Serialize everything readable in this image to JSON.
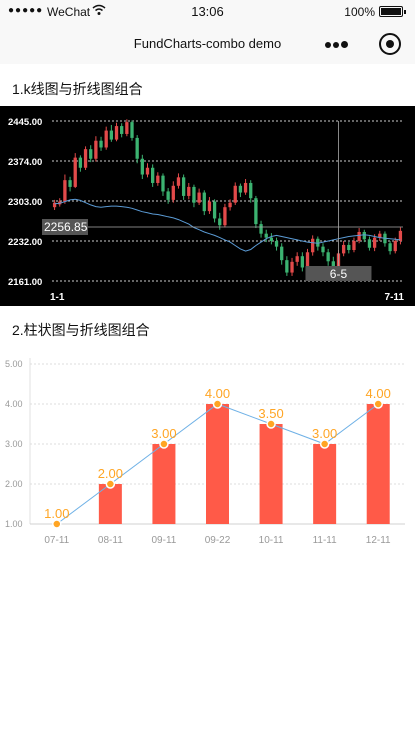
{
  "status_bar": {
    "signal": "●●●●●",
    "carrier": "WeChat",
    "wifi_icon": "wifi-icon",
    "time": "13:06",
    "battery": "100%"
  },
  "nav": {
    "title": "FundCharts-combo demo",
    "more_icon": "more-icon",
    "close_icon": "target-close-icon"
  },
  "sections": [
    {
      "title": "1.k线图与折线图组合"
    },
    {
      "title": "2.柱状图与折线图组合"
    }
  ],
  "chart_data": [
    {
      "type": "candlestick",
      "title": "",
      "y_ticks": [
        "2445.00",
        "2374.00",
        "2303.00",
        "2232.00",
        "2161.00"
      ],
      "ylim": [
        2161,
        2445
      ],
      "x_labels": [
        "1-1",
        "7-11"
      ],
      "crosshair": {
        "value_label": "2256.85",
        "date_label": "6-5",
        "value": 2256.85
      },
      "colors": {
        "up": "#e24a4a",
        "down": "#3cb371",
        "line": "#5b9bd5",
        "grid": "#cccccc",
        "bg": "#000000"
      },
      "ohlc": [
        [
          2292,
          2300,
          2305,
          2287
        ],
        [
          2297,
          2302,
          2308,
          2293
        ],
        [
          2302,
          2340,
          2350,
          2298
        ],
        [
          2340,
          2328,
          2346,
          2320
        ],
        [
          2328,
          2380,
          2388,
          2326
        ],
        [
          2380,
          2362,
          2384,
          2355
        ],
        [
          2362,
          2395,
          2400,
          2358
        ],
        [
          2395,
          2378,
          2402,
          2372
        ],
        [
          2378,
          2410,
          2418,
          2373
        ],
        [
          2410,
          2398,
          2417,
          2392
        ],
        [
          2398,
          2428,
          2435,
          2394
        ],
        [
          2428,
          2412,
          2438,
          2408
        ],
        [
          2412,
          2436,
          2442,
          2409
        ],
        [
          2436,
          2422,
          2441,
          2416
        ],
        [
          2422,
          2443,
          2448,
          2418
        ],
        [
          2443,
          2415,
          2446,
          2410
        ],
        [
          2415,
          2378,
          2420,
          2370
        ],
        [
          2378,
          2350,
          2385,
          2342
        ],
        [
          2350,
          2362,
          2370,
          2345
        ],
        [
          2362,
          2335,
          2368,
          2328
        ],
        [
          2335,
          2348,
          2354,
          2330
        ],
        [
          2348,
          2320,
          2352,
          2312
        ],
        [
          2320,
          2305,
          2326,
          2298
        ],
        [
          2305,
          2330,
          2338,
          2300
        ],
        [
          2330,
          2345,
          2352,
          2325
        ],
        [
          2345,
          2312,
          2350,
          2305
        ],
        [
          2312,
          2328,
          2335,
          2306
        ],
        [
          2328,
          2300,
          2332,
          2292
        ],
        [
          2300,
          2318,
          2325,
          2296
        ],
        [
          2318,
          2285,
          2322,
          2278
        ],
        [
          2285,
          2302,
          2310,
          2280
        ],
        [
          2302,
          2272,
          2306,
          2265
        ],
        [
          2272,
          2260,
          2282,
          2252
        ],
        [
          2260,
          2292,
          2298,
          2256
        ],
        [
          2292,
          2300,
          2306,
          2286
        ],
        [
          2300,
          2330,
          2336,
          2296
        ],
        [
          2330,
          2318,
          2334,
          2310
        ],
        [
          2318,
          2335,
          2342,
          2314
        ],
        [
          2335,
          2308,
          2340,
          2300
        ],
        [
          2308,
          2262,
          2312,
          2255
        ],
        [
          2262,
          2245,
          2268,
          2238
        ],
        [
          2245,
          2238,
          2252,
          2230
        ],
        [
          2238,
          2232,
          2246,
          2226
        ],
        [
          2232,
          2222,
          2238,
          2215
        ],
        [
          2222,
          2198,
          2228,
          2190
        ],
        [
          2198,
          2176,
          2205,
          2170
        ],
        [
          2176,
          2195,
          2202,
          2170
        ],
        [
          2195,
          2205,
          2212,
          2188
        ],
        [
          2205,
          2185,
          2212,
          2178
        ],
        [
          2185,
          2212,
          2218,
          2180
        ],
        [
          2212,
          2236,
          2242,
          2206
        ],
        [
          2236,
          2222,
          2240,
          2215
        ],
        [
          2222,
          2212,
          2228,
          2205
        ],
        [
          2212,
          2196,
          2218,
          2188
        ],
        [
          2196,
          2180,
          2204,
          2172
        ],
        [
          2180,
          2210,
          2216,
          2175
        ],
        [
          2210,
          2225,
          2232,
          2205
        ],
        [
          2225,
          2216,
          2230,
          2210
        ],
        [
          2216,
          2232,
          2238,
          2212
        ],
        [
          2232,
          2248,
          2255,
          2228
        ],
        [
          2248,
          2235,
          2252,
          2230
        ],
        [
          2235,
          2220,
          2240,
          2215
        ],
        [
          2220,
          2238,
          2244,
          2214
        ],
        [
          2238,
          2245,
          2250,
          2232
        ],
        [
          2245,
          2228,
          2249,
          2222
        ],
        [
          2228,
          2214,
          2232,
          2208
        ],
        [
          2214,
          2232,
          2238,
          2210
        ],
        [
          2232,
          2250,
          2256,
          2226
        ]
      ],
      "ma_line": [
        2298,
        2299,
        2302,
        2305,
        2306,
        2304,
        2300,
        2296,
        2293,
        2292,
        2293,
        2294,
        2294,
        2293,
        2292,
        2290,
        2287,
        2284,
        2282,
        2280,
        2279,
        2277,
        2275,
        2273,
        2270,
        2266,
        2262,
        2256,
        2252,
        2248,
        2245,
        2242,
        2238,
        2234,
        2230,
        2224,
        2218,
        2214,
        2217,
        2224,
        2230,
        2236,
        2240,
        2242,
        2240,
        2238,
        2236,
        2234,
        2232,
        2230,
        2229,
        2228,
        2230,
        2232,
        2234,
        2236,
        2238,
        2240,
        2241,
        2242,
        2243,
        2242,
        2240,
        2238,
        2237,
        2236,
        2235,
        2234
      ]
    },
    {
      "type": "bar",
      "title": "",
      "xlabel": "",
      "ylabel": "",
      "categories": [
        "07-11",
        "08-11",
        "09-11",
        "09-22",
        "10-11",
        "11-11",
        "12-11"
      ],
      "values": [
        1.0,
        2.0,
        3.0,
        4.0,
        3.5,
        3.0,
        4.0
      ],
      "value_labels": [
        "1.00",
        "2.00",
        "3.00",
        "4.00",
        "3.50",
        "3.00",
        "4.00"
      ],
      "line_values": [
        1.0,
        2.0,
        3.0,
        4.0,
        3.5,
        3.0,
        4.0
      ],
      "y_ticks": [
        "1.00",
        "2.00",
        "3.00",
        "4.00",
        "5.00"
      ],
      "ylim": [
        1.0,
        5.0
      ],
      "grid": true,
      "colors": {
        "bar": "#ff5a48",
        "line": "#6fb1e6",
        "point": "#ffa524",
        "label": "#ffa524",
        "axis": "#999999"
      }
    }
  ]
}
